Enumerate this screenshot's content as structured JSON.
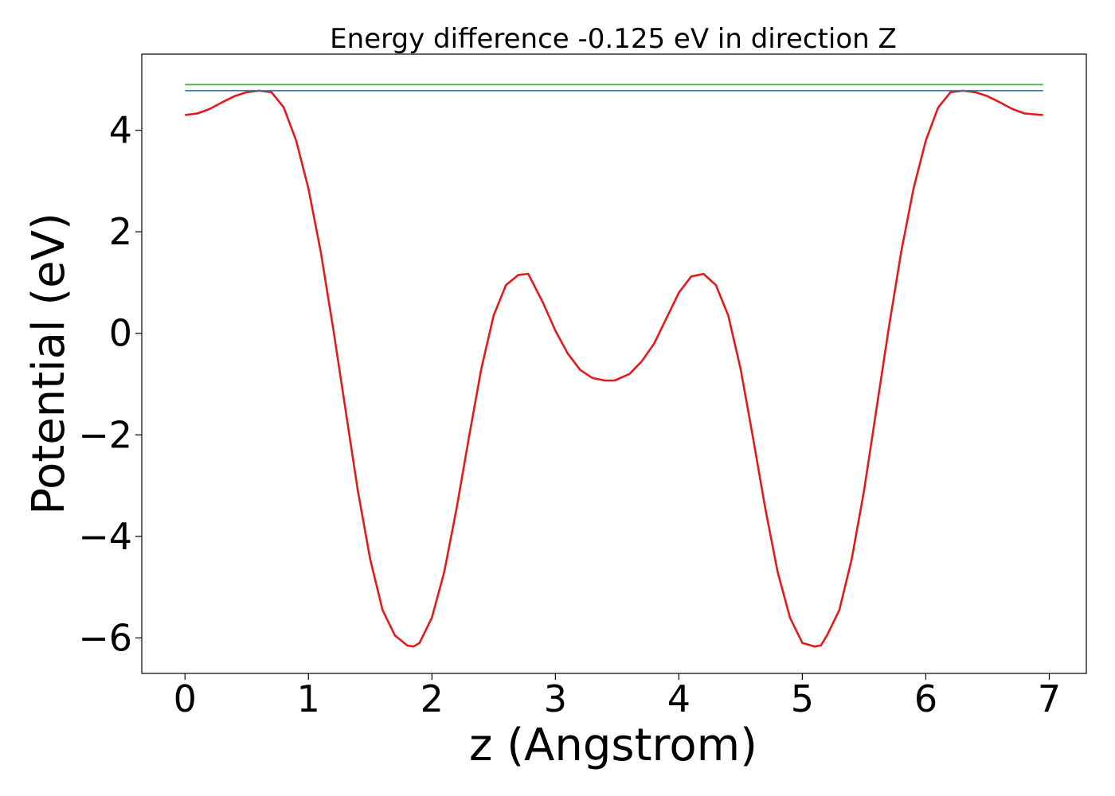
{
  "chart_data": {
    "type": "line",
    "title": "Energy difference -0.125 eV in direction Z",
    "xlabel": "z (Angstrom)",
    "ylabel": "Potential (eV)",
    "xlim": [
      -0.35,
      7.3
    ],
    "ylim": [
      -6.7,
      5.5
    ],
    "grid": false,
    "xticks": [
      0,
      1,
      2,
      3,
      4,
      5,
      6,
      7
    ],
    "xtick_labels": [
      "0",
      "1",
      "2",
      "3",
      "4",
      "5",
      "6",
      "7"
    ],
    "yticks": [
      -6,
      -4,
      -2,
      0,
      2,
      4
    ],
    "ytick_labels": [
      "−6",
      "−4",
      "−2",
      "0",
      "2",
      "4"
    ],
    "series": [
      {
        "color": "#e31a1c",
        "x": [
          0.0,
          0.1,
          0.2,
          0.3,
          0.4,
          0.5,
          0.6,
          0.7,
          0.8,
          0.9,
          1.0,
          1.1,
          1.2,
          1.3,
          1.4,
          1.5,
          1.6,
          1.7,
          1.8,
          1.85,
          1.9,
          2.0,
          2.1,
          2.2,
          2.3,
          2.4,
          2.5,
          2.6,
          2.7,
          2.78,
          2.9,
          3.0,
          3.1,
          3.2,
          3.3,
          3.4,
          3.48,
          3.6,
          3.7,
          3.8,
          3.9,
          4.0,
          4.1,
          4.2,
          4.3,
          4.4,
          4.5,
          4.6,
          4.7,
          4.8,
          4.9,
          5.0,
          5.1,
          5.15,
          5.2,
          5.3,
          5.4,
          5.5,
          5.6,
          5.7,
          5.8,
          5.9,
          6.0,
          6.1,
          6.2,
          6.3,
          6.4,
          6.5,
          6.6,
          6.7,
          6.8,
          6.95
        ],
        "y": [
          4.3,
          4.33,
          4.42,
          4.55,
          4.67,
          4.75,
          4.78,
          4.75,
          4.45,
          3.8,
          2.85,
          1.6,
          0.1,
          -1.5,
          -3.1,
          -4.45,
          -5.45,
          -5.95,
          -6.15,
          -6.17,
          -6.1,
          -5.6,
          -4.7,
          -3.45,
          -2.05,
          -0.7,
          0.35,
          0.95,
          1.15,
          1.17,
          0.6,
          0.05,
          -0.4,
          -0.72,
          -0.88,
          -0.93,
          -0.93,
          -0.8,
          -0.55,
          -0.2,
          0.3,
          0.8,
          1.12,
          1.17,
          0.95,
          0.35,
          -0.7,
          -2.05,
          -3.45,
          -4.7,
          -5.6,
          -6.1,
          -6.17,
          -6.15,
          -5.95,
          -5.45,
          -4.45,
          -3.1,
          -1.5,
          0.1,
          1.6,
          2.85,
          3.8,
          4.45,
          4.75,
          4.78,
          4.75,
          4.67,
          4.55,
          4.42,
          4.33,
          4.3
        ]
      },
      {
        "color": "#377eb8",
        "x": [
          0.0,
          6.95
        ],
        "y": [
          4.78,
          4.78
        ]
      },
      {
        "color": "#4daf4a",
        "x": [
          0.0,
          6.95
        ],
        "y": [
          4.9,
          4.9
        ]
      }
    ]
  }
}
